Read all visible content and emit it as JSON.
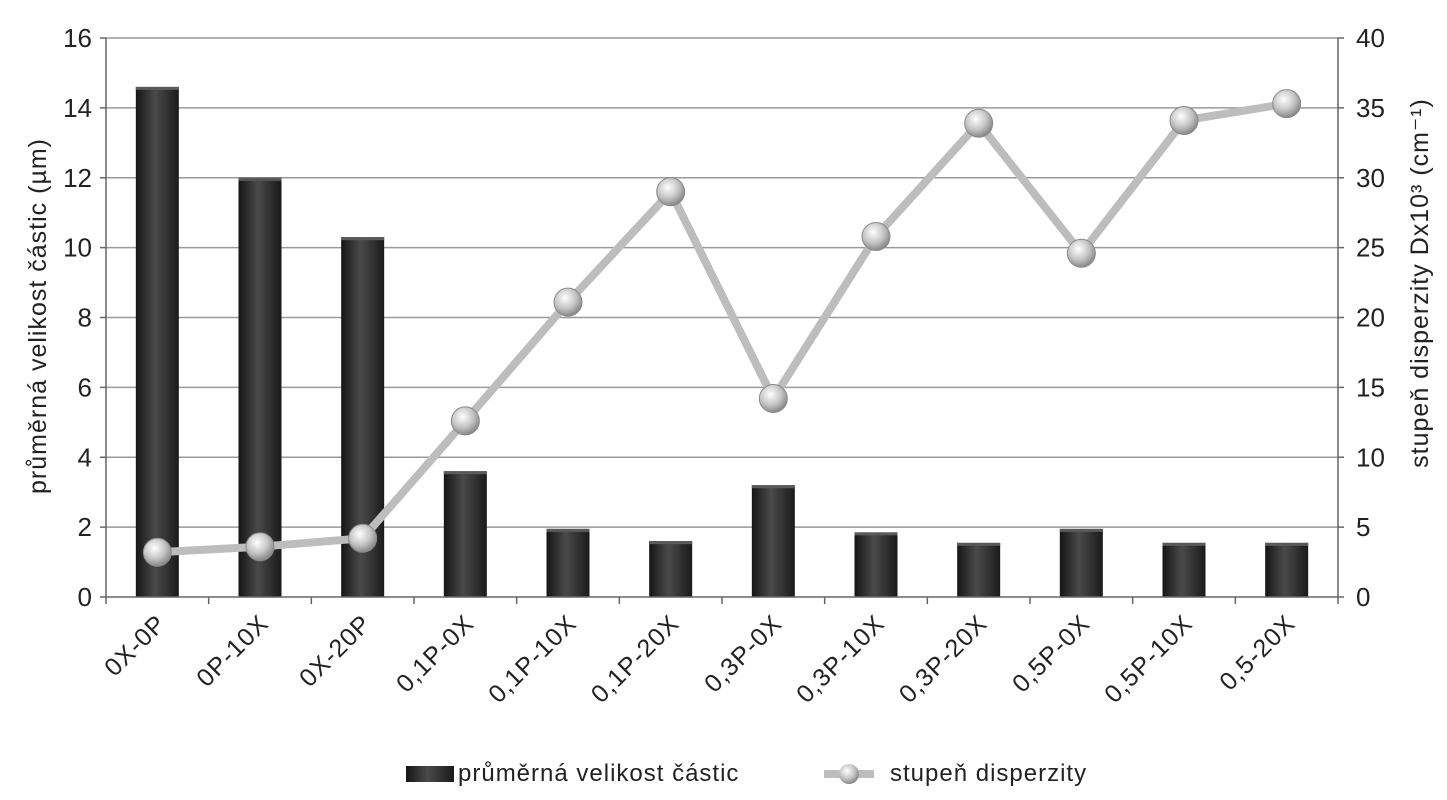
{
  "chart_data": {
    "type": "bar",
    "categories": [
      "0X-0P",
      "0P-10X",
      "0X-20P",
      "0,1P-0X",
      "0,1P-10X",
      "0,1P-20X",
      "0,3P-0X",
      "0,3P-10X",
      "0,3P-20X",
      "0,5P-0X",
      "0,5P-10X",
      "0,5-20X"
    ],
    "series": [
      {
        "name": "průměrná velikost částic",
        "type": "bar",
        "axis": "left",
        "values": [
          14.6,
          12.0,
          10.3,
          3.6,
          1.95,
          1.6,
          3.2,
          1.85,
          1.55,
          1.95,
          1.55,
          1.55
        ]
      },
      {
        "name": "stupeň disperzity",
        "type": "line",
        "axis": "right",
        "values": [
          3.2,
          3.6,
          4.2,
          12.6,
          21.1,
          29.0,
          14.2,
          25.8,
          33.9,
          24.6,
          34.1,
          35.3
        ]
      }
    ],
    "ylabel_left": "průměrná velikost částic (µm)",
    "ylabel_right": "stupeň disperzity Dx10³ (cm⁻¹)",
    "ylim_left": [
      0,
      16
    ],
    "ylim_right": [
      0,
      40
    ],
    "yticks_left": [
      "0",
      "2",
      "4",
      "6",
      "8",
      "10",
      "12",
      "14",
      "16"
    ],
    "yticks_right": [
      "0",
      "5",
      "10",
      "15",
      "20",
      "25",
      "30",
      "35",
      "40"
    ],
    "grid": true,
    "legend_position": "bottom",
    "colors": {
      "bar": "#2e2e2e",
      "line": "#bdbdbd",
      "marker": "#c8c8c8",
      "grid": "#9a9a9a"
    }
  }
}
